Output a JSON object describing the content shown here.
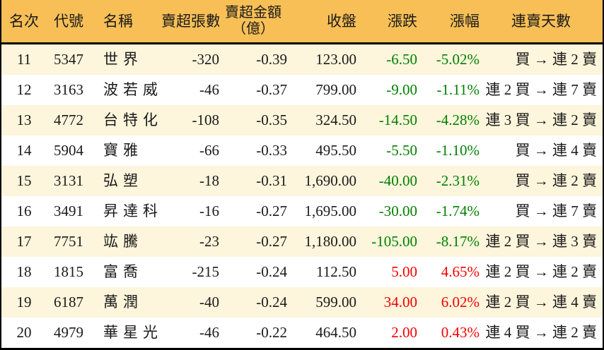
{
  "colors": {
    "header_bg": "#f7bf56",
    "row_stripe": "#fdf5dc",
    "row_plain": "#ffffff",
    "border": "#000000",
    "text": "#1a1a1a",
    "down_green": "#008000",
    "up_red": "#f60000"
  },
  "table": {
    "columns": [
      {
        "key": "rank",
        "label": "名次"
      },
      {
        "key": "code",
        "label": "代號"
      },
      {
        "key": "name",
        "label": "名稱"
      },
      {
        "key": "sell_volume",
        "label": "賣超張數"
      },
      {
        "key": "sell_amount",
        "label": "賣超金額",
        "label2": "（億）"
      },
      {
        "key": "close",
        "label": "收盤"
      },
      {
        "key": "change",
        "label": "漲跌"
      },
      {
        "key": "change_pct",
        "label": "漲幅"
      },
      {
        "key": "streak",
        "label": "連賣天數"
      }
    ],
    "rows": [
      {
        "rank": "11",
        "code": "5347",
        "name": "世界",
        "sell_volume": "-320",
        "sell_amount": "-0.39",
        "close": "123.00",
        "change": "-6.50",
        "change_pct": "-5.02%",
        "streak": "買 → 連 2 賣",
        "trend": "down"
      },
      {
        "rank": "12",
        "code": "3163",
        "name": "波若威",
        "sell_volume": "-46",
        "sell_amount": "-0.37",
        "close": "799.00",
        "change": "-9.00",
        "change_pct": "-1.11%",
        "streak": "連 2 買 → 連 7 賣",
        "trend": "down"
      },
      {
        "rank": "13",
        "code": "4772",
        "name": "台特化",
        "sell_volume": "-108",
        "sell_amount": "-0.35",
        "close": "324.50",
        "change": "-14.50",
        "change_pct": "-4.28%",
        "streak": "連 3 買 → 連 2 賣",
        "trend": "down"
      },
      {
        "rank": "14",
        "code": "5904",
        "name": "寶雅",
        "sell_volume": "-66",
        "sell_amount": "-0.33",
        "close": "495.50",
        "change": "-5.50",
        "change_pct": "-1.10%",
        "streak": "買 → 連 4 賣",
        "trend": "down"
      },
      {
        "rank": "15",
        "code": "3131",
        "name": "弘塑",
        "sell_volume": "-18",
        "sell_amount": "-0.31",
        "close": "1,690.00",
        "change": "-40.00",
        "change_pct": "-2.31%",
        "streak": "買 → 連 2 賣",
        "trend": "down"
      },
      {
        "rank": "16",
        "code": "3491",
        "name": "昇達科",
        "sell_volume": "-16",
        "sell_amount": "-0.27",
        "close": "1,695.00",
        "change": "-30.00",
        "change_pct": "-1.74%",
        "streak": "買 → 連 7 賣",
        "trend": "down"
      },
      {
        "rank": "17",
        "code": "7751",
        "name": "竑騰",
        "sell_volume": "-23",
        "sell_amount": "-0.27",
        "close": "1,180.00",
        "change": "-105.00",
        "change_pct": "-8.17%",
        "streak": "連 2 買 → 連 3 賣",
        "trend": "down"
      },
      {
        "rank": "18",
        "code": "1815",
        "name": "富喬",
        "sell_volume": "-215",
        "sell_amount": "-0.24",
        "close": "112.50",
        "change": "5.00",
        "change_pct": "4.65%",
        "streak": "連 2 買 → 連 2 賣",
        "trend": "up"
      },
      {
        "rank": "19",
        "code": "6187",
        "name": "萬潤",
        "sell_volume": "-40",
        "sell_amount": "-0.24",
        "close": "599.00",
        "change": "34.00",
        "change_pct": "6.02%",
        "streak": "連 2 買 → 連 4 賣",
        "trend": "up"
      },
      {
        "rank": "20",
        "code": "4979",
        "name": "華星光",
        "sell_volume": "-46",
        "sell_amount": "-0.22",
        "close": "464.50",
        "change": "2.00",
        "change_pct": "0.43%",
        "streak": "連 4 買 → 連 2 賣",
        "trend": "up"
      }
    ]
  }
}
